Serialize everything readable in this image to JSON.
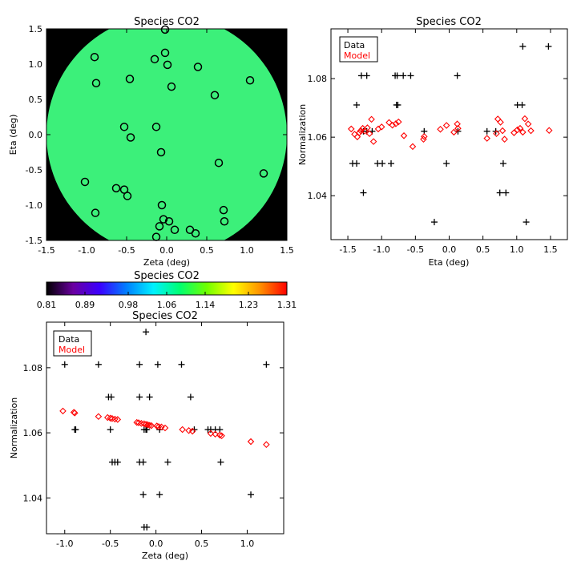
{
  "chart_data": [
    {
      "id": "map",
      "type": "heatmap",
      "title": "Species CO2",
      "xlabel": "Zeta (deg)",
      "ylabel": "Eta (deg)",
      "xlim": [
        -1.5,
        1.5
      ],
      "ylim": [
        -1.5,
        1.5
      ],
      "xticks": [
        -1.5,
        -1.0,
        -0.5,
        0.0,
        0.5,
        1.0,
        1.5
      ],
      "yticks": [
        -1.5,
        -1.0,
        -0.5,
        0.0,
        0.5,
        1.0,
        1.5
      ],
      "tick_labels": [
        "-1.5",
        "-1.0",
        "-0.5",
        "0.0",
        "0.5",
        "1.0",
        "1.5"
      ],
      "disk_radius_deg": 1.5,
      "disk_color": "#3cf07a",
      "background_color": "#000000",
      "marker": "open-circle",
      "points": [
        [
          -0.02,
          1.49
        ],
        [
          -0.9,
          1.1
        ],
        [
          -0.88,
          0.73
        ],
        [
          -0.15,
          1.07
        ],
        [
          -0.02,
          1.16
        ],
        [
          0.01,
          0.99
        ],
        [
          0.39,
          0.96
        ],
        [
          -0.46,
          0.79
        ],
        [
          0.06,
          0.68
        ],
        [
          1.04,
          0.77
        ],
        [
          0.6,
          0.56
        ],
        [
          -0.53,
          0.11
        ],
        [
          -0.13,
          0.11
        ],
        [
          -0.45,
          -0.04
        ],
        [
          -0.07,
          -0.25
        ],
        [
          0.65,
          -0.4
        ],
        [
          1.21,
          -0.55
        ],
        [
          -1.02,
          -0.67
        ],
        [
          -0.63,
          -0.76
        ],
        [
          -0.53,
          -0.78
        ],
        [
          -0.49,
          -0.87
        ],
        [
          -0.06,
          -1.0
        ],
        [
          0.71,
          -1.07
        ],
        [
          -0.89,
          -1.11
        ],
        [
          -0.04,
          -1.2
        ],
        [
          0.03,
          -1.23
        ],
        [
          0.72,
          -1.23
        ],
        [
          -0.09,
          -1.3
        ],
        [
          0.1,
          -1.35
        ],
        [
          0.29,
          -1.35
        ],
        [
          0.36,
          -1.4
        ],
        [
          -0.13,
          -1.45
        ]
      ]
    },
    {
      "id": "colorbar",
      "title": "Species CO2",
      "range": [
        0.81,
        1.31
      ],
      "tick_labels": [
        "0.81",
        "0.89",
        "0.98",
        "1.06",
        "1.14",
        "1.23",
        "1.31"
      ],
      "tick_values": [
        0.81,
        0.89,
        0.98,
        1.06,
        1.14,
        1.23,
        1.31
      ],
      "colormap": [
        "#000000",
        "#6a00a0",
        "#3a00ff",
        "#0080ff",
        "#00f0ff",
        "#00ff70",
        "#70ff00",
        "#ffff00",
        "#ff9000",
        "#ff0000"
      ]
    },
    {
      "id": "eta",
      "type": "scatter",
      "title": "Species CO2",
      "xlabel": "Eta (deg)",
      "ylabel": "Normalization",
      "xlim": [
        -1.75,
        1.75
      ],
      "ylim": [
        1.025,
        1.097
      ],
      "xticks": [
        -1.5,
        -1.0,
        -0.5,
        0.0,
        0.5,
        1.0,
        1.5
      ],
      "xtick_labels": [
        "-1.5",
        "-1.0",
        "-0.5",
        "0.0",
        "0.5",
        "1.0",
        "1.5"
      ],
      "yticks": [
        1.04,
        1.06,
        1.08
      ],
      "ytick_labels": [
        "1.04",
        "1.06",
        "1.08"
      ],
      "legend": {
        "location": "top-left",
        "entries": [
          "Data",
          "Model"
        ]
      },
      "series": [
        {
          "name": "Data",
          "marker": "plus",
          "color": "#000000",
          "x": [
            1.09,
            1.47,
            -1.3,
            -1.22,
            -0.8,
            -0.77,
            -0.68,
            -0.57,
            0.12,
            -1.37,
            -0.78,
            -0.76,
            1.01,
            1.08,
            -1.27,
            -1.22,
            -1.14,
            -0.37,
            0.13,
            0.56,
            0.69,
            -1.43,
            -1.37,
            -1.06,
            -0.99,
            -0.86,
            -0.04,
            0.8,
            -1.27,
            0.75,
            0.84,
            -0.22,
            1.14
          ],
          "y": [
            1.091,
            1.091,
            1.081,
            1.081,
            1.081,
            1.081,
            1.081,
            1.081,
            1.081,
            1.071,
            1.071,
            1.071,
            1.071,
            1.071,
            1.062,
            1.062,
            1.062,
            1.062,
            1.062,
            1.062,
            1.062,
            1.051,
            1.051,
            1.051,
            1.051,
            1.051,
            1.051,
            1.051,
            1.041,
            1.041,
            1.041,
            1.031,
            1.031
          ]
        },
        {
          "name": "Model",
          "marker": "open-diamond",
          "color": "#ff0000",
          "x": [
            -1.45,
            -1.4,
            -1.36,
            -1.33,
            -1.31,
            -1.28,
            -1.25,
            -1.21,
            -1.18,
            -1.15,
            -1.12,
            -1.05,
            -1.0,
            -0.89,
            -0.84,
            -0.79,
            -0.75,
            -0.67,
            -0.54,
            -0.38,
            -0.13,
            -0.04,
            0.07,
            0.12,
            0.56,
            0.7,
            0.72,
            0.76,
            0.79,
            0.82,
            0.96,
            1.01,
            1.05,
            1.09,
            1.12,
            1.17,
            1.21,
            1.48,
            0.13,
            -0.37
          ],
          "y": [
            1.0628,
            1.061,
            1.0601,
            1.0615,
            1.0622,
            1.063,
            1.0621,
            1.0632,
            1.0612,
            1.0661,
            1.0585,
            1.0628,
            1.0635,
            1.065,
            1.0641,
            1.0646,
            1.0652,
            1.0605,
            1.0568,
            1.0593,
            1.0627,
            1.064,
            1.0617,
            1.0645,
            1.0596,
            1.0612,
            1.0662,
            1.0651,
            1.0622,
            1.0593,
            1.0615,
            1.0625,
            1.063,
            1.0617,
            1.0663,
            1.0645,
            1.0622,
            1.0623,
            1.063,
            1.0602
          ]
        }
      ]
    },
    {
      "id": "zeta",
      "type": "scatter",
      "title": "Species CO2",
      "xlabel": "Zeta (deg)",
      "ylabel": "Normalization",
      "xlim": [
        -1.2,
        1.4
      ],
      "ylim": [
        1.029,
        1.094
      ],
      "xticks": [
        -1.0,
        -0.5,
        0.0,
        0.5,
        1.0
      ],
      "xtick_labels": [
        "-1.0",
        "-0.5",
        "0.0",
        "0.5",
        "1.0"
      ],
      "yticks": [
        1.04,
        1.06,
        1.08
      ],
      "ytick_labels": [
        "1.04",
        "1.06",
        "1.08"
      ],
      "legend": {
        "location": "top-left",
        "entries": [
          "Data",
          "Model"
        ]
      },
      "series": [
        {
          "name": "Data",
          "marker": "plus",
          "color": "#000000",
          "x": [
            -1.0,
            -0.63,
            -0.18,
            0.02,
            0.28,
            1.21,
            -0.52,
            -0.49,
            -0.18,
            -0.07,
            0.38,
            -0.88,
            -0.89,
            -0.5,
            -0.13,
            -0.11,
            -0.1,
            0.04,
            0.42,
            0.57,
            0.6,
            0.65,
            0.7,
            -0.48,
            -0.45,
            -0.42,
            -0.18,
            -0.14,
            0.13,
            0.71,
            -0.14,
            0.04,
            1.04,
            -0.13,
            -0.1,
            -0.11
          ],
          "y": [
            1.081,
            1.081,
            1.081,
            1.081,
            1.081,
            1.081,
            1.071,
            1.071,
            1.071,
            1.071,
            1.071,
            1.061,
            1.061,
            1.061,
            1.061,
            1.061,
            1.061,
            1.061,
            1.061,
            1.061,
            1.061,
            1.061,
            1.061,
            1.051,
            1.051,
            1.051,
            1.051,
            1.051,
            1.051,
            1.051,
            1.041,
            1.041,
            1.041,
            1.031,
            1.031,
            1.091
          ]
        },
        {
          "name": "Model",
          "marker": "open-diamond",
          "color": "#ff0000",
          "x": [
            -1.02,
            -0.9,
            -0.89,
            -0.63,
            -0.53,
            -0.5,
            -0.48,
            -0.45,
            -0.42,
            -0.21,
            -0.19,
            -0.16,
            -0.13,
            -0.11,
            -0.09,
            -0.07,
            -0.05,
            0.01,
            0.03,
            0.06,
            0.1,
            0.29,
            0.36,
            0.4,
            0.6,
            0.65,
            0.7,
            0.72,
            1.04,
            1.21
          ],
          "y": [
            1.0667,
            1.0663,
            1.0661,
            1.065,
            1.0647,
            1.0645,
            1.0644,
            1.0642,
            1.0641,
            1.0632,
            1.0631,
            1.0629,
            1.0628,
            1.0626,
            1.0625,
            1.0623,
            1.0622,
            1.0621,
            1.0619,
            1.0618,
            1.0615,
            1.061,
            1.0607,
            1.0605,
            1.0598,
            1.0596,
            1.0593,
            1.0591,
            1.0573,
            1.0564
          ]
        }
      ]
    }
  ]
}
